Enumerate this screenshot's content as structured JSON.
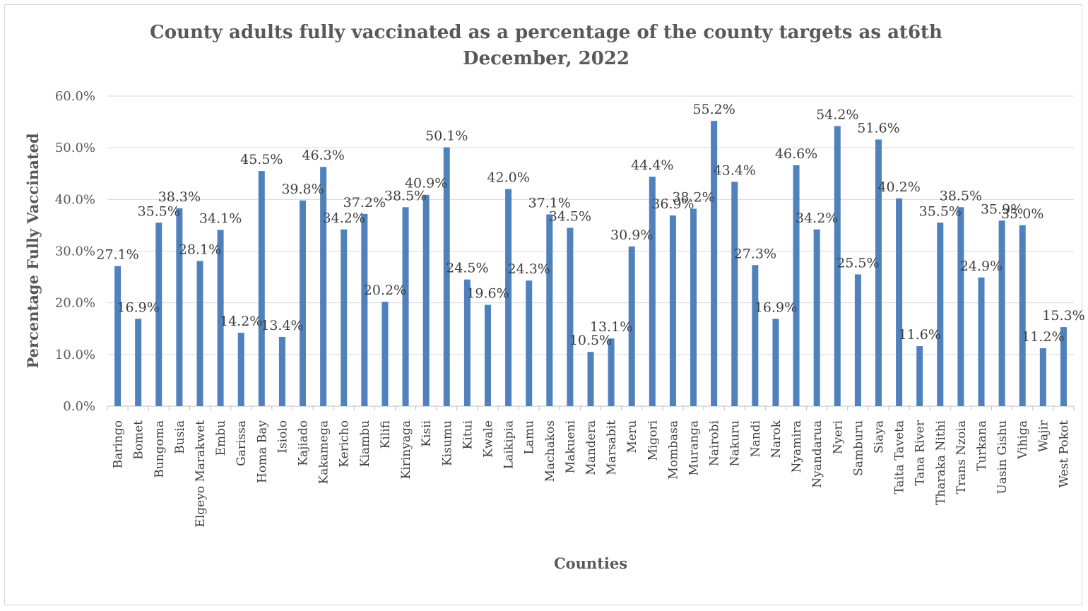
{
  "chart_data": {
    "type": "bar",
    "title_line1": "County adults fully vaccinated as a percentage of the county targets as at6th",
    "title_line2": "December, 2022",
    "xlabel": "Counties",
    "ylabel": "Percentage Fully Vaccinated",
    "ylim": [
      0,
      60
    ],
    "yticks": [
      0,
      10,
      20,
      30,
      40,
      50,
      60
    ],
    "ytick_labels": [
      "0.0%",
      "10.0%",
      "20.0%",
      "30.0%",
      "40.0%",
      "50.0%",
      "60.0%"
    ],
    "grid": true,
    "legend": "none",
    "bar_color": "#4f81bd",
    "categories": [
      "Baringo",
      "Bomet",
      "Bungoma",
      "Busia",
      "Elgeyo Marakwet",
      "Embu",
      "Garissa",
      "Homa Bay",
      "Isiolo",
      "Kajiado",
      "Kakamega",
      "Kericho",
      "Kiambu",
      "Kilifi",
      "Kirinyaga",
      "Kisii",
      "Kisumu",
      "Kitui",
      "Kwale",
      "Laikipia",
      "Lamu",
      "Machakos",
      "Makueni",
      "Mandera",
      "Marsabit",
      "Meru",
      "Migori",
      "Mombasa",
      "Muranga",
      "Nairobi",
      "Nakuru",
      "Nandi",
      "Narok",
      "Nyamira",
      "Nyandarua",
      "Nyeri",
      "Samburu",
      "Siaya",
      "Taita Taveta",
      "Tana River",
      "Tharaka Nithi",
      "Trans Nzoia",
      "Turkana",
      "Uasin Gishu",
      "Vihiga",
      "Wajir",
      "West Pokot"
    ],
    "values": [
      27.1,
      16.9,
      35.5,
      38.3,
      28.1,
      34.1,
      14.2,
      45.5,
      13.4,
      39.8,
      46.3,
      34.2,
      37.2,
      20.2,
      38.5,
      40.9,
      50.1,
      24.5,
      19.6,
      42.0,
      24.3,
      37.1,
      34.5,
      10.5,
      13.1,
      30.9,
      44.4,
      36.9,
      38.2,
      55.2,
      43.4,
      27.3,
      16.9,
      46.6,
      34.2,
      54.2,
      25.5,
      51.6,
      40.2,
      11.6,
      35.5,
      38.5,
      24.9,
      35.9,
      35.0,
      11.2,
      15.3
    ],
    "data_labels": [
      "27.1%",
      "16.9%",
      "35.5%",
      "38.3%",
      "28.1%",
      "34.1%",
      "14.2%",
      "45.5%",
      "13.4%",
      "39.8%",
      "46.3%",
      "34.2%",
      "37.2%",
      "20.2%",
      "38.5%",
      "40.9%",
      "50.1%",
      "24.5%",
      "19.6%",
      "42.0%",
      "24.3%",
      "37.1%",
      "34.5%",
      "10.5%",
      "13.1%",
      "30.9%",
      "44.4%",
      "36.9%",
      "38.2%",
      "55.2%",
      "43.4%",
      "27.3%",
      "16.9%",
      "46.6%",
      "34.2%",
      "54.2%",
      "25.5%",
      "51.6%",
      "40.2%",
      "11.6%",
      "35.5%",
      "38.5%",
      "24.9%",
      "35.9%",
      "35.0%",
      "11.2%",
      "15.3%"
    ]
  }
}
